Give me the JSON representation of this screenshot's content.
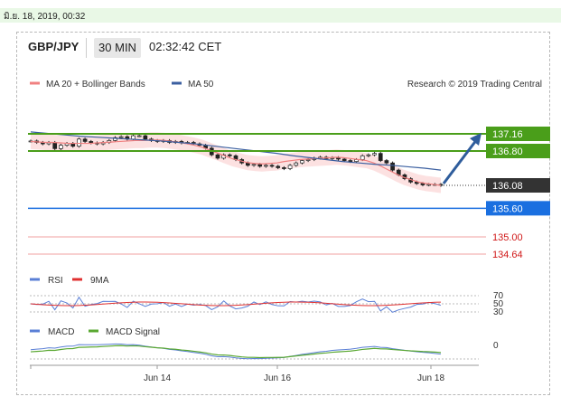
{
  "date_bar": "มิ.ย. 18, 2019, 00:32",
  "header": {
    "symbol": "GBP/JPY",
    "timeframe": "30 MIN",
    "clock": "02:32:42 CET"
  },
  "research": "Research © 2019 Trading Central",
  "colors": {
    "ma20": "#f08080",
    "ma50": "#3b5fa0",
    "band": "#fbdcdc",
    "resistance": "#4a9e1a",
    "support": "#1a6fe0",
    "price_label": "#333333",
    "rsi": "#5a7fd6",
    "rsi_ma": "#e03030",
    "macd": "#5a7fd6",
    "macd_signal": "#5aa832",
    "arrow": "#2f5d9c"
  },
  "chart_data": {
    "type": "candlestick",
    "legend": [
      "MA 20 + Bollinger Bands",
      "MA 50"
    ],
    "x_ticks": [
      "Jun 14",
      "Jun 16",
      "Jun 18"
    ],
    "ylim": [
      134.4,
      137.3
    ],
    "current_price": "136.08",
    "levels": [
      {
        "label": "137.16",
        "value": 137.16,
        "kind": "resistance"
      },
      {
        "label": "136.80",
        "value": 136.8,
        "kind": "resistance"
      },
      {
        "label": "135.60",
        "value": 135.6,
        "kind": "support"
      },
      {
        "label": "135.00",
        "value": 135.0,
        "kind": "target"
      },
      {
        "label": "134.64",
        "value": 134.64,
        "kind": "target"
      }
    ],
    "close_series": [
      137.01,
      136.98,
      136.95,
      136.98,
      136.85,
      136.92,
      136.96,
      136.9,
      137.05,
      137.0,
      136.97,
      136.95,
      136.98,
      137.02,
      137.08,
      137.1,
      137.05,
      137.12,
      137.12,
      137.05,
      137.02,
      137.0,
      137.02,
      136.98,
      137.0,
      136.97,
      136.98,
      136.95,
      136.92,
      136.86,
      136.72,
      136.65,
      136.72,
      136.7,
      136.62,
      136.55,
      136.5,
      136.52,
      136.48,
      136.5,
      136.48,
      136.45,
      136.43,
      136.5,
      136.55,
      136.6,
      136.62,
      136.65,
      136.67,
      136.64,
      136.66,
      136.63,
      136.6,
      136.58,
      136.62,
      136.7,
      136.72,
      136.75,
      136.6,
      136.55,
      136.4,
      136.3,
      136.22,
      136.15,
      136.12,
      136.09,
      136.1,
      136.1,
      136.08
    ],
    "ma20_series": [
      137.0,
      136.99,
      136.98,
      136.98,
      136.97,
      136.96,
      136.96,
      136.96,
      136.96,
      136.97,
      136.98,
      136.99,
      137.0,
      137.01,
      137.02,
      137.02,
      137.03,
      137.03,
      137.02,
      137.0,
      136.98,
      136.95,
      136.92,
      136.88,
      136.82,
      136.76,
      136.7,
      136.64,
      136.6,
      136.56,
      136.54,
      136.53,
      136.54,
      136.55,
      136.58,
      136.6,
      136.62,
      136.63,
      136.64,
      136.65,
      136.66,
      136.67,
      136.66,
      136.64,
      136.62,
      136.6,
      136.55,
      136.48,
      136.4,
      136.32,
      136.25,
      136.2,
      136.15,
      136.12,
      136.1,
      136.08
    ],
    "ma50_series": [
      137.2,
      137.17,
      137.14,
      137.11,
      137.09,
      137.07,
      137.05,
      137.03,
      137.01,
      136.98,
      136.95,
      136.91,
      136.87,
      136.83,
      136.79,
      136.75,
      136.7,
      136.66,
      136.62,
      136.58,
      136.55,
      136.52,
      136.5,
      136.47,
      136.44,
      136.4
    ],
    "rsi": {
      "legend": [
        "RSI",
        "9MA"
      ],
      "levels": [
        "70",
        "50",
        "30"
      ]
    },
    "macd": {
      "legend": [
        "MACD",
        "MACD Signal"
      ],
      "zero_label": "0"
    }
  }
}
